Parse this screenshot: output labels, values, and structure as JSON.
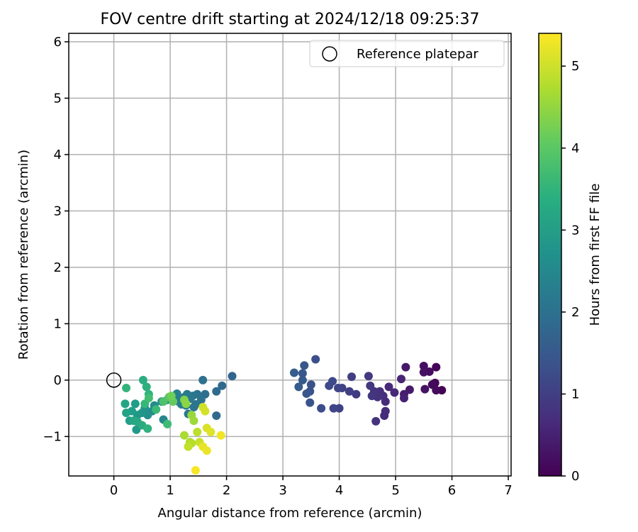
{
  "chart_data": {
    "type": "scatter",
    "title": "FOV centre drift starting at 2024/12/18 09:25:37",
    "xlabel": "Angular distance from reference (arcmin)",
    "ylabel": "Rotation from reference (arcmin)",
    "xlim": [
      -0.8,
      7.05
    ],
    "ylim": [
      -1.7,
      6.15
    ],
    "x_ticks": [
      0,
      1,
      2,
      3,
      4,
      5,
      6,
      7
    ],
    "y_ticks": [
      -1,
      0,
      1,
      2,
      3,
      4,
      5,
      6
    ],
    "grid": true,
    "legend": {
      "placement": "top-right",
      "entries": [
        "Reference platepar"
      ]
    },
    "reference_point": {
      "x": 0,
      "y": 0,
      "label": "Reference platepar"
    },
    "colorbar": {
      "label": "Hours from first FF file",
      "range": [
        0,
        5.4
      ],
      "ticks": [
        0,
        1,
        2,
        3,
        4,
        5
      ],
      "colormap": "viridis"
    },
    "points": [
      {
        "x": 5.82,
        "y": -0.18,
        "c": 0.02
      },
      {
        "x": 5.72,
        "y": 0.23,
        "c": 0.05
      },
      {
        "x": 5.7,
        "y": -0.05,
        "c": 0.08
      },
      {
        "x": 5.65,
        "y": -0.08,
        "c": 0.12
      },
      {
        "x": 5.72,
        "y": -0.18,
        "c": 0.15
      },
      {
        "x": 5.6,
        "y": 0.15,
        "c": 0.18
      },
      {
        "x": 5.5,
        "y": 0.25,
        "c": 0.22
      },
      {
        "x": 5.5,
        "y": 0.14,
        "c": 0.25
      },
      {
        "x": 5.52,
        "y": -0.16,
        "c": 0.28
      },
      {
        "x": 5.18,
        "y": 0.23,
        "c": 0.35
      },
      {
        "x": 5.25,
        "y": -0.17,
        "c": 0.4
      },
      {
        "x": 5.15,
        "y": -0.25,
        "c": 0.45
      },
      {
        "x": 5.15,
        "y": -0.32,
        "c": 0.5
      },
      {
        "x": 5.1,
        "y": 0.02,
        "c": 0.55
      },
      {
        "x": 4.98,
        "y": -0.22,
        "c": 0.58
      },
      {
        "x": 4.88,
        "y": -0.12,
        "c": 0.62
      },
      {
        "x": 4.82,
        "y": -0.38,
        "c": 0.65
      },
      {
        "x": 4.82,
        "y": -0.55,
        "c": 0.68
      },
      {
        "x": 4.8,
        "y": -0.63,
        "c": 0.7
      },
      {
        "x": 4.78,
        "y": -0.28,
        "c": 0.72
      },
      {
        "x": 4.72,
        "y": -0.2,
        "c": 0.75
      },
      {
        "x": 4.68,
        "y": -0.3,
        "c": 0.78
      },
      {
        "x": 4.65,
        "y": -0.73,
        "c": 0.8
      },
      {
        "x": 4.62,
        "y": -0.2,
        "c": 0.82
      },
      {
        "x": 4.58,
        "y": -0.28,
        "c": 0.85
      },
      {
        "x": 4.55,
        "y": -0.1,
        "c": 0.88
      },
      {
        "x": 4.52,
        "y": 0.07,
        "c": 0.9
      },
      {
        "x": 4.3,
        "y": -0.25,
        "c": 0.95
      },
      {
        "x": 4.22,
        "y": 0.06,
        "c": 1.0
      },
      {
        "x": 4.18,
        "y": -0.2,
        "c": 1.02
      },
      {
        "x": 4.05,
        "y": -0.14,
        "c": 1.05
      },
      {
        "x": 4.0,
        "y": -0.5,
        "c": 1.08
      },
      {
        "x": 3.98,
        "y": -0.14,
        "c": 1.12
      },
      {
        "x": 3.9,
        "y": -0.5,
        "c": 1.15
      },
      {
        "x": 3.88,
        "y": -0.02,
        "c": 1.2
      },
      {
        "x": 3.82,
        "y": -0.1,
        "c": 1.22
      },
      {
        "x": 3.68,
        "y": -0.5,
        "c": 1.28
      },
      {
        "x": 3.58,
        "y": 0.37,
        "c": 1.32
      },
      {
        "x": 3.5,
        "y": -0.08,
        "c": 1.35
      },
      {
        "x": 3.48,
        "y": -0.2,
        "c": 1.38
      },
      {
        "x": 3.48,
        "y": -0.4,
        "c": 1.42
      },
      {
        "x": 3.42,
        "y": -0.24,
        "c": 1.45
      },
      {
        "x": 3.38,
        "y": 0.26,
        "c": 1.48
      },
      {
        "x": 3.35,
        "y": 0.12,
        "c": 1.5
      },
      {
        "x": 3.35,
        "y": 0.0,
        "c": 1.52
      },
      {
        "x": 3.28,
        "y": -0.12,
        "c": 1.55
      },
      {
        "x": 3.2,
        "y": 0.13,
        "c": 1.58
      },
      {
        "x": 2.1,
        "y": 0.07,
        "c": 1.75
      },
      {
        "x": 1.92,
        "y": -0.1,
        "c": 1.8
      },
      {
        "x": 1.82,
        "y": -0.2,
        "c": 1.85
      },
      {
        "x": 1.82,
        "y": -0.63,
        "c": 1.88
      },
      {
        "x": 1.62,
        "y": -0.25,
        "c": 1.95
      },
      {
        "x": 1.58,
        "y": 0.0,
        "c": 2.0
      },
      {
        "x": 1.55,
        "y": -0.35,
        "c": 2.02
      },
      {
        "x": 1.48,
        "y": -0.25,
        "c": 2.05
      },
      {
        "x": 1.45,
        "y": -0.43,
        "c": 2.08
      },
      {
        "x": 1.42,
        "y": -0.48,
        "c": 2.1
      },
      {
        "x": 1.4,
        "y": -0.28,
        "c": 2.12
      },
      {
        "x": 1.35,
        "y": -0.33,
        "c": 2.15
      },
      {
        "x": 1.32,
        "y": -0.6,
        "c": 2.18
      },
      {
        "x": 1.3,
        "y": -0.25,
        "c": 2.2
      },
      {
        "x": 1.28,
        "y": -0.45,
        "c": 2.22
      },
      {
        "x": 1.25,
        "y": -0.3,
        "c": 2.25
      },
      {
        "x": 1.2,
        "y": -0.43,
        "c": 2.28
      },
      {
        "x": 1.18,
        "y": -0.32,
        "c": 2.3
      },
      {
        "x": 1.15,
        "y": -0.38,
        "c": 2.32
      },
      {
        "x": 1.12,
        "y": -0.24,
        "c": 2.35
      },
      {
        "x": 1.05,
        "y": -0.32,
        "c": 2.38
      },
      {
        "x": 0.95,
        "y": -0.35,
        "c": 2.45
      },
      {
        "x": 0.88,
        "y": -0.7,
        "c": 2.5
      },
      {
        "x": 0.85,
        "y": -0.38,
        "c": 2.55
      },
      {
        "x": 0.72,
        "y": -0.45,
        "c": 2.6
      },
      {
        "x": 0.68,
        "y": -0.55,
        "c": 2.65
      },
      {
        "x": 0.6,
        "y": -0.62,
        "c": 2.7
      },
      {
        "x": 0.55,
        "y": -0.5,
        "c": 2.75
      },
      {
        "x": 0.5,
        "y": -0.58,
        "c": 2.8
      },
      {
        "x": 0.42,
        "y": -0.62,
        "c": 2.85
      },
      {
        "x": 0.4,
        "y": -0.88,
        "c": 2.9
      },
      {
        "x": 0.38,
        "y": -0.42,
        "c": 2.95
      },
      {
        "x": 0.32,
        "y": -0.55,
        "c": 3.0
      },
      {
        "x": 0.28,
        "y": -0.72,
        "c": 3.05
      },
      {
        "x": 0.22,
        "y": -0.58,
        "c": 3.1
      },
      {
        "x": 0.2,
        "y": -0.42,
        "c": 3.15
      },
      {
        "x": 0.35,
        "y": -0.72,
        "c": 3.2
      },
      {
        "x": 0.42,
        "y": -0.74,
        "c": 3.25
      },
      {
        "x": 0.5,
        "y": -0.8,
        "c": 3.3
      },
      {
        "x": 0.52,
        "y": 0.0,
        "c": 3.35
      },
      {
        "x": 0.58,
        "y": -0.12,
        "c": 3.4
      },
      {
        "x": 0.6,
        "y": -0.86,
        "c": 3.45
      },
      {
        "x": 0.62,
        "y": -0.25,
        "c": 3.5
      },
      {
        "x": 0.22,
        "y": -0.14,
        "c": 3.55
      },
      {
        "x": 0.55,
        "y": -0.42,
        "c": 3.6
      },
      {
        "x": 0.75,
        "y": -0.52,
        "c": 3.65
      },
      {
        "x": 0.95,
        "y": -0.78,
        "c": 3.7
      },
      {
        "x": 0.62,
        "y": -0.32,
        "c": 3.75
      },
      {
        "x": 0.88,
        "y": -0.38,
        "c": 3.85
      },
      {
        "x": 0.98,
        "y": -0.3,
        "c": 4.0
      },
      {
        "x": 1.05,
        "y": -0.38,
        "c": 4.1
      },
      {
        "x": 1.02,
        "y": -0.28,
        "c": 4.2
      },
      {
        "x": 1.25,
        "y": -0.35,
        "c": 4.35
      },
      {
        "x": 1.28,
        "y": -0.42,
        "c": 4.45
      },
      {
        "x": 1.38,
        "y": -0.62,
        "c": 4.55
      },
      {
        "x": 1.42,
        "y": -0.72,
        "c": 4.6
      },
      {
        "x": 1.25,
        "y": -0.98,
        "c": 4.7
      },
      {
        "x": 1.35,
        "y": -1.1,
        "c": 4.75
      },
      {
        "x": 1.38,
        "y": -1.12,
        "c": 4.8
      },
      {
        "x": 1.48,
        "y": -0.92,
        "c": 4.85
      },
      {
        "x": 1.32,
        "y": -1.18,
        "c": 4.9
      },
      {
        "x": 1.52,
        "y": -1.1,
        "c": 4.95
      },
      {
        "x": 1.58,
        "y": -0.48,
        "c": 5.0
      },
      {
        "x": 1.62,
        "y": -0.55,
        "c": 5.05
      },
      {
        "x": 1.65,
        "y": -0.85,
        "c": 5.1
      },
      {
        "x": 1.72,
        "y": -0.92,
        "c": 5.15
      },
      {
        "x": 1.58,
        "y": -1.18,
        "c": 5.2
      },
      {
        "x": 1.65,
        "y": -1.25,
        "c": 5.25
      },
      {
        "x": 1.9,
        "y": -0.98,
        "c": 5.3
      },
      {
        "x": 1.45,
        "y": -1.6,
        "c": 5.35
      }
    ]
  }
}
